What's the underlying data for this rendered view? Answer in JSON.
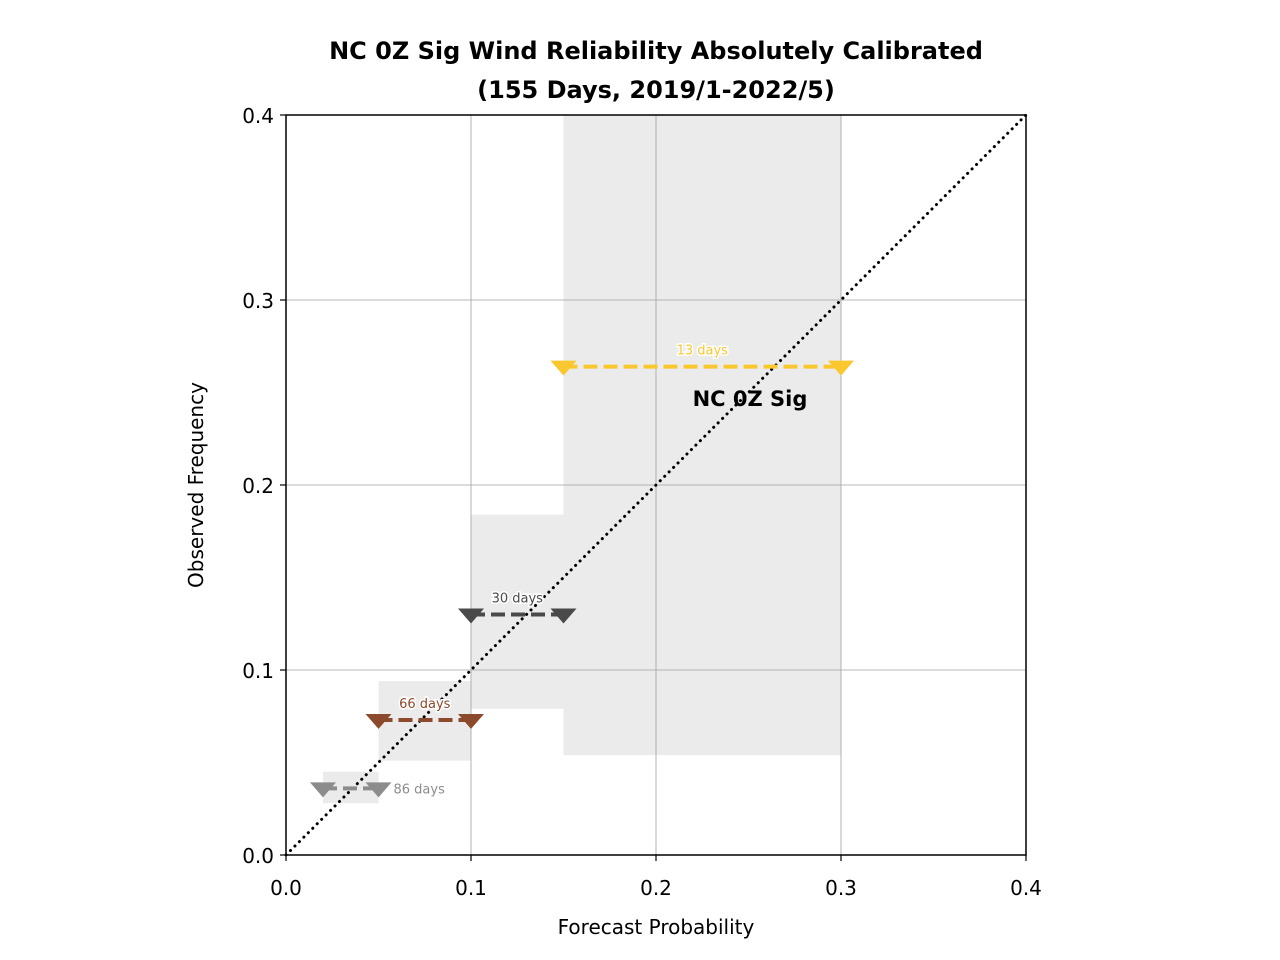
{
  "chart_data": {
    "type": "scatter",
    "title": "NC 0Z Sig Wind Reliability Absolutely Calibrated",
    "subtitle": "(155 Days, 2019/1-2022/5)",
    "xlabel": "Forecast Probability",
    "ylabel": "Observed Frequency",
    "xlim": [
      0.0,
      0.4
    ],
    "ylim": [
      0.0,
      0.4
    ],
    "xticks": [
      "0.0",
      "0.1",
      "0.2",
      "0.3",
      "0.4"
    ],
    "yticks": [
      "0.0",
      "0.1",
      "0.2",
      "0.3",
      "0.4"
    ],
    "grid": true,
    "diagonal": "dotted perfect-reliability line",
    "annotation": "NC 0Z Sig",
    "bins": [
      {
        "x_low": 0.02,
        "x_high": 0.05,
        "observed": 0.036,
        "ci_low": 0.028,
        "ci_high": 0.045,
        "days": 86,
        "days_label": "86 days",
        "color": "#8c8c8c"
      },
      {
        "x_low": 0.05,
        "x_high": 0.1,
        "observed": 0.073,
        "ci_low": 0.051,
        "ci_high": 0.094,
        "days": 66,
        "days_label": "66 days",
        "color": "#8b4a2b"
      },
      {
        "x_low": 0.1,
        "x_high": 0.15,
        "observed": 0.13,
        "ci_low": 0.079,
        "ci_high": 0.184,
        "days": 30,
        "days_label": "30 days",
        "color": "#4a4a4a"
      },
      {
        "x_low": 0.15,
        "x_high": 0.3,
        "observed": 0.264,
        "ci_low": 0.054,
        "ci_high": 0.4,
        "days": 13,
        "days_label": "13 days",
        "color": "#fbc72f"
      }
    ]
  }
}
